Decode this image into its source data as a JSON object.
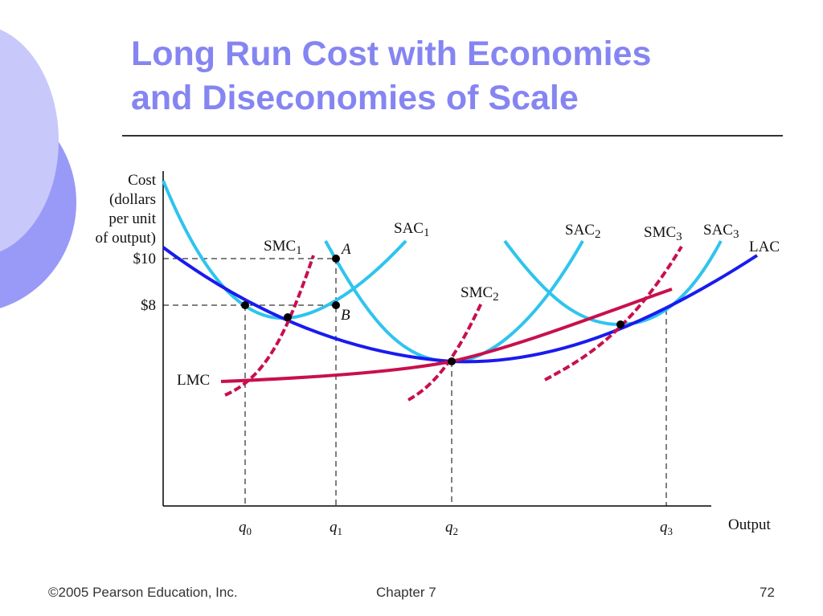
{
  "slide": {
    "title_line1": "Long Run Cost with Economies",
    "title_line2": "and Diseconomies of Scale",
    "footer_copyright": "©2005 Pearson Education, Inc.",
    "footer_chapter": "Chapter 7",
    "footer_page": "72"
  },
  "diagram": {
    "y_label": [
      "Cost",
      "(dollars",
      "per unit",
      "of output)"
    ],
    "y_ticks": [
      "$10",
      "$8"
    ],
    "x_label": "Output",
    "x_ticks": [
      {
        "base": "q",
        "sub": "0"
      },
      {
        "base": "q",
        "sub": "1"
      },
      {
        "base": "q",
        "sub": "2"
      },
      {
        "base": "q",
        "sub": "3"
      }
    ],
    "curves": {
      "sac1": {
        "base": "SAC",
        "sub": "1"
      },
      "sac2": {
        "base": "SAC",
        "sub": "2"
      },
      "sac3": {
        "base": "SAC",
        "sub": "3"
      },
      "smc1": {
        "base": "SMC",
        "sub": "1"
      },
      "smc2": {
        "base": "SMC",
        "sub": "2"
      },
      "smc3": {
        "base": "SMC",
        "sub": "3"
      },
      "lac": "LAC",
      "lmc": "LMC"
    },
    "points": {
      "a": "A",
      "b": "B"
    },
    "colors": {
      "sac": "#2ec4ee",
      "lac": "#1a1af0",
      "mc": "#c8104c",
      "title": "#8585f2"
    }
  }
}
